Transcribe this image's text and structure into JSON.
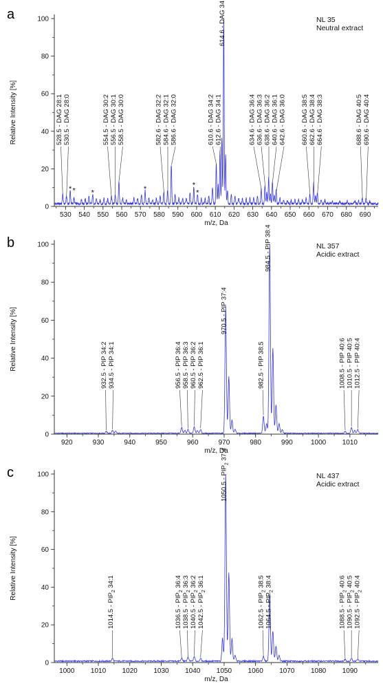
{
  "chart_data": [
    {
      "panel_label": "a",
      "type": "line",
      "xlabel": "m/z, Da",
      "ylabel": "Relative Intensity [%]",
      "xlim": [
        524,
        697
      ],
      "ylim": [
        0,
        100
      ],
      "xticks": [
        530,
        540,
        550,
        560,
        570,
        580,
        590,
        600,
        610,
        620,
        630,
        640,
        650,
        660,
        670,
        680,
        690
      ],
      "yticks": [
        0,
        20,
        40,
        60,
        80,
        100
      ],
      "notes": [
        "NL 35",
        "Neutral extract"
      ],
      "color": "#3333ee",
      "baseline": 1.5,
      "peaks": [
        [
          528.5,
          5
        ],
        [
          530.5,
          4
        ],
        [
          532.5,
          7
        ],
        [
          534.5,
          3
        ],
        [
          538.5,
          2.5
        ],
        [
          540.5,
          2.5
        ],
        [
          542.5,
          4
        ],
        [
          544.5,
          5
        ],
        [
          546.5,
          2.5
        ],
        [
          548.5,
          2
        ],
        [
          550.5,
          3
        ],
        [
          552.5,
          2.5
        ],
        [
          554.5,
          4
        ],
        [
          556.5,
          5
        ],
        [
          558.5,
          12
        ],
        [
          560.5,
          3
        ],
        [
          562.5,
          2
        ],
        [
          566.5,
          3
        ],
        [
          568.5,
          3
        ],
        [
          570.5,
          5
        ],
        [
          572.5,
          7
        ],
        [
          574.5,
          3
        ],
        [
          576.5,
          2
        ],
        [
          578.5,
          3
        ],
        [
          580.5,
          4
        ],
        [
          582.5,
          6
        ],
        [
          584.5,
          7
        ],
        [
          586.5,
          21
        ],
        [
          588.5,
          5
        ],
        [
          590.5,
          3
        ],
        [
          592.5,
          3
        ],
        [
          594.5,
          3
        ],
        [
          596.5,
          6
        ],
        [
          598.5,
          9
        ],
        [
          600.5,
          5
        ],
        [
          602.5,
          3
        ],
        [
          604.5,
          3
        ],
        [
          606.5,
          4
        ],
        [
          608.5,
          9
        ],
        [
          610.5,
          21
        ],
        [
          611.5,
          10
        ],
        [
          612.5,
          28
        ],
        [
          613.5,
          35
        ],
        [
          614.5,
          100
        ],
        [
          615.5,
          26
        ],
        [
          616.5,
          7
        ],
        [
          618.5,
          5
        ],
        [
          620.5,
          4
        ],
        [
          622.5,
          3
        ],
        [
          624.5,
          3
        ],
        [
          626.5,
          3
        ],
        [
          628.5,
          3
        ],
        [
          630.5,
          3
        ],
        [
          632.5,
          4
        ],
        [
          634.5,
          8
        ],
        [
          636.5,
          10
        ],
        [
          637.5,
          6
        ],
        [
          638.5,
          14
        ],
        [
          639.5,
          5
        ],
        [
          640.5,
          12
        ],
        [
          641.5,
          5
        ],
        [
          642.5,
          7
        ],
        [
          644.5,
          3
        ],
        [
          646.5,
          2
        ],
        [
          648.5,
          2
        ],
        [
          650.5,
          2
        ],
        [
          652.5,
          2
        ],
        [
          654.5,
          2
        ],
        [
          656.5,
          2
        ],
        [
          658.5,
          3
        ],
        [
          660.5,
          5
        ],
        [
          662.5,
          11
        ],
        [
          663.5,
          4
        ],
        [
          664.5,
          6
        ],
        [
          666.5,
          2
        ],
        [
          668.5,
          2
        ],
        [
          672.5,
          1.5
        ],
        [
          676.5,
          1.5
        ],
        [
          680.5,
          1.5
        ],
        [
          684.5,
          1.5
        ],
        [
          686.5,
          2
        ],
        [
          688.5,
          3
        ],
        [
          690.5,
          3
        ],
        [
          692.5,
          1.5
        ]
      ],
      "annotations": [
        {
          "x": 528.5,
          "y": 5,
          "text": "528.5 - DAG 28:1"
        },
        {
          "x": 530.5,
          "y": 4,
          "text": "530.5 - DAG 28:0"
        },
        {
          "x": 554.5,
          "y": 4,
          "text": "554.5 - DAG 30:2"
        },
        {
          "x": 556.5,
          "y": 5,
          "text": "556.5 - DAG 30:1"
        },
        {
          "x": 558.5,
          "y": 12,
          "text": "558.5 - DAG 30:0"
        },
        {
          "x": 582.6,
          "y": 6,
          "text": "582.6 - DAG 32:2"
        },
        {
          "x": 584.6,
          "y": 7,
          "text": "584.6 - DAG 32:1"
        },
        {
          "x": 586.6,
          "y": 21,
          "text": "586.6 - DAG 32:0"
        },
        {
          "x": 610.6,
          "y": 21,
          "text": "610.6 - DAG 34:2"
        },
        {
          "x": 612.6,
          "y": 28,
          "text": "612.6 - DAG 34:1"
        },
        {
          "x": 614.6,
          "y": 100,
          "text": "614.6 - DAG 34:0"
        },
        {
          "x": 634.6,
          "y": 8,
          "text": "634.6 - DAG 36:4"
        },
        {
          "x": 636.6,
          "y": 10,
          "text": "636.6 - DAG 36:3"
        },
        {
          "x": 638.6,
          "y": 14,
          "text": "638.6 - DAG 36:2"
        },
        {
          "x": 640.6,
          "y": 12,
          "text": "640.6 - DAG 36:1"
        },
        {
          "x": 642.6,
          "y": 7,
          "text": "642.6 - DAG 36:0"
        },
        {
          "x": 660.6,
          "y": 5,
          "text": "660.6 - DAG 38:5"
        },
        {
          "x": 662.6,
          "y": 11,
          "text": "662.6 - DAG 38:4"
        },
        {
          "x": 664.6,
          "y": 6,
          "text": "664.6 - DAG 38:3"
        },
        {
          "x": 688.6,
          "y": 3,
          "text": "688.6 - DAG 40:5"
        },
        {
          "x": 690.6,
          "y": 3,
          "text": "690.6 - DAG 40:4"
        }
      ],
      "markers": [
        {
          "x": 532.5,
          "y": 7,
          "text": "*"
        },
        {
          "x": 534.5,
          "y": 6,
          "text": "*"
        },
        {
          "x": 544.5,
          "y": 5,
          "text": "*"
        },
        {
          "x": 572.5,
          "y": 7,
          "text": "*"
        },
        {
          "x": 598.5,
          "y": 9,
          "text": "*"
        },
        {
          "x": 600.5,
          "y": 5,
          "text": "*"
        }
      ]
    },
    {
      "panel_label": "b",
      "type": "line",
      "xlabel": "m/z, Da",
      "ylabel": "Relative Intensity [%]",
      "xlim": [
        916,
        1019
      ],
      "ylim": [
        0,
        100
      ],
      "xticks": [
        920,
        930,
        940,
        950,
        960,
        970,
        980,
        990,
        1000,
        1010
      ],
      "yticks": [
        0,
        20,
        40,
        60,
        80,
        100
      ],
      "notes": [
        "NL 357",
        "Acidic extract"
      ],
      "color": "#3333ee",
      "baseline": 0.5,
      "peaks": [
        [
          932.5,
          1
        ],
        [
          934.5,
          1.5
        ],
        [
          935.5,
          1
        ],
        [
          956.5,
          3
        ],
        [
          957.5,
          1.5
        ],
        [
          958.5,
          2
        ],
        [
          960.5,
          3.5
        ],
        [
          961.5,
          1.5
        ],
        [
          962.5,
          2
        ],
        [
          970.5,
          67
        ],
        [
          971.5,
          30
        ],
        [
          972.5,
          7
        ],
        [
          973.5,
          2
        ],
        [
          982.5,
          9
        ],
        [
          983.5,
          5
        ],
        [
          984.5,
          100
        ],
        [
          985.5,
          45
        ],
        [
          986.5,
          15
        ],
        [
          987.5,
          5
        ],
        [
          988.5,
          2
        ],
        [
          1008.5,
          1
        ],
        [
          1010.5,
          3
        ],
        [
          1011.5,
          1.5
        ],
        [
          1012.5,
          2
        ]
      ],
      "annotations": [
        {
          "x": 932.5,
          "y": 1,
          "text": "932.5 - PIP 34:2"
        },
        {
          "x": 934.5,
          "y": 1.5,
          "text": "934.5 - PIP 34:1"
        },
        {
          "x": 956.5,
          "y": 3,
          "text": "956.5 - PIP 36:4"
        },
        {
          "x": 958.5,
          "y": 2,
          "text": "958.5 - PIP 36:3"
        },
        {
          "x": 960.5,
          "y": 3.5,
          "text": "960.5 - PIP 36:2"
        },
        {
          "x": 962.5,
          "y": 2,
          "text": "962.5 - PIP 36:1"
        },
        {
          "x": 970.5,
          "y": 67,
          "text": "970.5 - PIP 37:4"
        },
        {
          "x": 982.5,
          "y": 9,
          "text": "982.5 - PIP 38:5"
        },
        {
          "x": 984.5,
          "y": 100,
          "text": "984.5 - PIP 38:4"
        },
        {
          "x": 1008.5,
          "y": 1,
          "text": "1008.5 - PIP 40:6"
        },
        {
          "x": 1010.5,
          "y": 3,
          "text": "1010.5 - PIP 40:5"
        },
        {
          "x": 1012.5,
          "y": 2,
          "text": "1012.5 - PIP 40:4"
        }
      ],
      "markers": []
    },
    {
      "panel_label": "c",
      "type": "line",
      "xlabel": "m/z, Da",
      "ylabel": "Relative Intensity [%]",
      "xlim": [
        996,
        1099
      ],
      "ylim": [
        0,
        100
      ],
      "xticks": [
        1000,
        1010,
        1020,
        1030,
        1040,
        1050,
        1060,
        1070,
        1080,
        1090
      ],
      "yticks": [
        0,
        20,
        40,
        60,
        80,
        100
      ],
      "notes": [
        "NL 437",
        "Acidic extract"
      ],
      "color": "#3333ee",
      "baseline": 0.8,
      "peaks": [
        [
          1014.5,
          1.5
        ],
        [
          1036.5,
          1.5
        ],
        [
          1038.5,
          2
        ],
        [
          1040.5,
          2.5
        ],
        [
          1042.5,
          1.5
        ],
        [
          1049.5,
          12
        ],
        [
          1050.5,
          100
        ],
        [
          1051.5,
          47
        ],
        [
          1052.5,
          12
        ],
        [
          1053.5,
          3
        ],
        [
          1062.5,
          2.5
        ],
        [
          1064.5,
          36
        ],
        [
          1065.5,
          16
        ],
        [
          1066.5,
          8
        ],
        [
          1067.5,
          3
        ],
        [
          1088.5,
          1
        ],
        [
          1090.5,
          1.5
        ],
        [
          1092.5,
          1
        ]
      ],
      "annotations": [
        {
          "x": 1014.5,
          "y": 1.5,
          "pre": "1014.5 - PIP",
          "sub": "2",
          "post": " 34:1"
        },
        {
          "x": 1036.5,
          "y": 1.5,
          "pre": "1036.5 - PIP",
          "sub": "2",
          "post": " 36:4"
        },
        {
          "x": 1038.5,
          "y": 2,
          "pre": "1038.5 - PIP",
          "sub": "2",
          "post": " 36:3"
        },
        {
          "x": 1040.5,
          "y": 2.5,
          "pre": "1040.5 - PIP",
          "sub": "2",
          "post": " 36:2"
        },
        {
          "x": 1042.5,
          "y": 1.5,
          "pre": "1042.5 - PIP",
          "sub": "2",
          "post": " 36:1"
        },
        {
          "x": 1050.5,
          "y": 100,
          "pre": "1050.5 - PIP",
          "sub": "2",
          "post": " 37:4"
        },
        {
          "x": 1062.5,
          "y": 2.5,
          "pre": "1062.5 - PIP",
          "sub": "2",
          "post": " 38:5"
        },
        {
          "x": 1064.5,
          "y": 36,
          "pre": "1064.5 - PIP",
          "sub": "2",
          "post": " 38:4"
        },
        {
          "x": 1088.5,
          "y": 1,
          "pre": "1088.5 - PIP",
          "sub": "2",
          "post": " 40:6"
        },
        {
          "x": 1090.5,
          "y": 1.5,
          "pre": "1090.5 - PIP",
          "sub": "2",
          "post": " 40:5"
        },
        {
          "x": 1092.5,
          "y": 1,
          "pre": "1092.5 - PIP",
          "sub": "2",
          "post": " 40:4"
        }
      ],
      "markers": []
    }
  ]
}
